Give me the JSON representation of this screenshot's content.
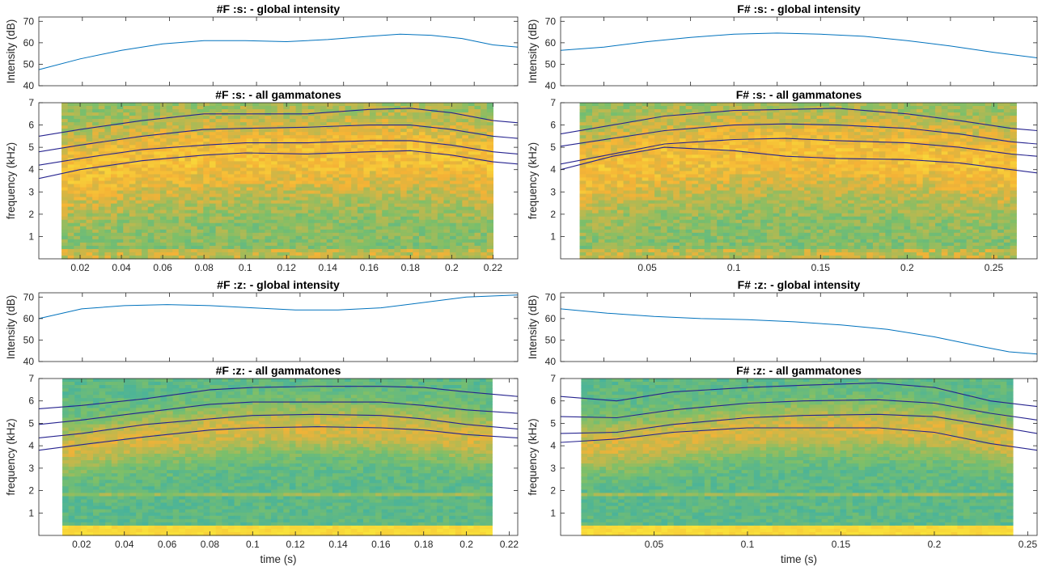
{
  "figure": {
    "background": "#ffffff"
  },
  "colors": {
    "intensity_line": "#0072bd",
    "formant_line": "#26238f",
    "spectro_low": "#1aa8c8",
    "spectro_mid": "#7cbf6a",
    "spectro_high": "#f5b236",
    "spectro_peak": "#f9e33a"
  },
  "chart_data": [
    {
      "id": "F_s_intensity",
      "type": "line",
      "title": "#F :s: - global intensity",
      "xlabel": "",
      "ylabel": "Intensity (dB)",
      "xlim": [
        0,
        0.232
      ],
      "ylim": [
        40,
        72
      ],
      "xticks": [],
      "yticks": [
        40,
        50,
        60,
        70
      ],
      "series": [
        {
          "x": [
            0,
            0.02,
            0.04,
            0.06,
            0.08,
            0.1,
            0.12,
            0.14,
            0.16,
            0.175,
            0.19,
            0.205,
            0.22,
            0.232
          ],
          "y": [
            47.5,
            52.5,
            56.5,
            59.5,
            61,
            61,
            60.5,
            61.5,
            63,
            64,
            63.5,
            62,
            59,
            58
          ]
        }
      ]
    },
    {
      "id": "F_s_gammatones",
      "type": "heatmap",
      "title": "#F :s: - all gammatones",
      "xlabel": "",
      "ylabel": "frequency (kHz)",
      "xlim": [
        0,
        0.232
      ],
      "ylim": [
        0,
        7
      ],
      "data_xrange": [
        0.011,
        0.22
      ],
      "xticks": [
        0.02,
        0.04,
        0.06,
        0.08,
        0.1,
        0.12,
        0.14,
        0.16,
        0.18,
        0.2,
        0.22
      ],
      "xticklabels": [
        "0.02",
        "0.04",
        "0.06",
        "0.08",
        "0.1",
        "0.12",
        "0.14",
        "0.16",
        "0.18",
        "0.2",
        "0.22"
      ],
      "yticks": [
        1,
        2,
        3,
        4,
        5,
        6,
        7
      ],
      "formants": [
        {
          "x": [
            0,
            0.02,
            0.05,
            0.08,
            0.1,
            0.13,
            0.16,
            0.18,
            0.2,
            0.22,
            0.232
          ],
          "y": [
            5.5,
            5.8,
            6.2,
            6.5,
            6.5,
            6.5,
            6.7,
            6.75,
            6.55,
            6.2,
            6.1
          ]
        },
        {
          "x": [
            0,
            0.02,
            0.05,
            0.08,
            0.1,
            0.13,
            0.16,
            0.18,
            0.2,
            0.22,
            0.232
          ],
          "y": [
            4.8,
            5.1,
            5.5,
            5.8,
            5.85,
            5.9,
            6.0,
            6.0,
            5.8,
            5.5,
            5.4
          ]
        },
        {
          "x": [
            0,
            0.02,
            0.05,
            0.08,
            0.1,
            0.13,
            0.16,
            0.18,
            0.2,
            0.22,
            0.232
          ],
          "y": [
            4.2,
            4.5,
            4.9,
            5.1,
            5.2,
            5.2,
            5.3,
            5.3,
            5.1,
            4.8,
            4.7
          ]
        },
        {
          "x": [
            0,
            0.02,
            0.05,
            0.08,
            0.1,
            0.13,
            0.16,
            0.18,
            0.2,
            0.22,
            0.232
          ],
          "y": [
            3.6,
            4.0,
            4.4,
            4.65,
            4.75,
            4.7,
            4.8,
            4.85,
            4.65,
            4.35,
            4.25
          ]
        }
      ]
    },
    {
      "id": "Fsharp_s_intensity",
      "type": "line",
      "title": "F# :s: - global intensity",
      "xlabel": "",
      "ylabel": "Intensity (dB)",
      "xlim": [
        0,
        0.275
      ],
      "ylim": [
        40,
        72
      ],
      "xticks": [],
      "yticks": [
        40,
        50,
        60,
        70
      ],
      "series": [
        {
          "x": [
            0,
            0.025,
            0.05,
            0.075,
            0.1,
            0.125,
            0.15,
            0.175,
            0.2,
            0.225,
            0.25,
            0.275
          ],
          "y": [
            56.5,
            58,
            60.5,
            62.5,
            64,
            64.5,
            64,
            63,
            61,
            58.5,
            55.5,
            53
          ]
        }
      ]
    },
    {
      "id": "Fsharp_s_gammatones",
      "type": "heatmap",
      "title": "F# :s: - all gammatones",
      "xlabel": "",
      "ylabel": "frequency (kHz)",
      "xlim": [
        0,
        0.275
      ],
      "ylim": [
        0,
        7
      ],
      "data_xrange": [
        0.011,
        0.263
      ],
      "xticks": [
        0.05,
        0.1,
        0.15,
        0.2,
        0.25
      ],
      "xticklabels": [
        "0.05",
        "0.1",
        "0.15",
        "0.2",
        "0.25"
      ],
      "yticks": [
        1,
        2,
        3,
        4,
        5,
        6,
        7
      ],
      "formants": [
        {
          "x": [
            0,
            0.03,
            0.06,
            0.1,
            0.13,
            0.16,
            0.2,
            0.23,
            0.26,
            0.275
          ],
          "y": [
            5.6,
            6.0,
            6.4,
            6.65,
            6.7,
            6.75,
            6.5,
            6.2,
            5.85,
            5.75
          ]
        },
        {
          "x": [
            0,
            0.03,
            0.06,
            0.1,
            0.13,
            0.16,
            0.2,
            0.23,
            0.26,
            0.275
          ],
          "y": [
            5.05,
            5.4,
            5.75,
            6.0,
            6.05,
            6.0,
            5.85,
            5.6,
            5.25,
            5.15
          ]
        },
        {
          "x": [
            0,
            0.03,
            0.06,
            0.1,
            0.13,
            0.16,
            0.2,
            0.23,
            0.26,
            0.275
          ],
          "y": [
            4.25,
            4.7,
            5.15,
            5.35,
            5.4,
            5.3,
            5.2,
            5.0,
            4.7,
            4.6
          ]
        },
        {
          "x": [
            0,
            0.03,
            0.06,
            0.1,
            0.13,
            0.16,
            0.2,
            0.23,
            0.26,
            0.275
          ],
          "y": [
            4.0,
            4.6,
            5.0,
            4.85,
            4.6,
            4.5,
            4.45,
            4.3,
            4.0,
            3.85
          ]
        }
      ]
    },
    {
      "id": "F_z_intensity",
      "type": "line",
      "title": "#F :z: - global intensity",
      "xlabel": "",
      "ylabel": "Intensity (dB)",
      "xlim": [
        0,
        0.224
      ],
      "ylim": [
        40,
        72
      ],
      "xticks": [],
      "yticks": [
        40,
        50,
        60,
        70
      ],
      "series": [
        {
          "x": [
            0,
            0.02,
            0.04,
            0.06,
            0.08,
            0.1,
            0.12,
            0.14,
            0.16,
            0.18,
            0.2,
            0.224
          ],
          "y": [
            60,
            64.5,
            66,
            66.5,
            66,
            65,
            64,
            64,
            65,
            67.5,
            70,
            71
          ]
        }
      ]
    },
    {
      "id": "F_z_gammatones",
      "type": "heatmap",
      "title": "#F :z: - all gammatones",
      "xlabel": "time (s)",
      "ylabel": "frequency (kHz)",
      "xlim": [
        0,
        0.224
      ],
      "ylim": [
        0,
        7
      ],
      "data_xrange": [
        0.011,
        0.212
      ],
      "xticks": [
        0.02,
        0.04,
        0.06,
        0.08,
        0.1,
        0.12,
        0.14,
        0.16,
        0.18,
        0.2,
        0.22
      ],
      "xticklabels": [
        "0.02",
        "0.04",
        "0.06",
        "0.08",
        "0.1",
        "0.12",
        "0.14",
        "0.16",
        "0.18",
        "0.2",
        "0.22"
      ],
      "yticks": [
        1,
        2,
        3,
        4,
        5,
        6,
        7
      ],
      "formants": [
        {
          "x": [
            0,
            0.02,
            0.05,
            0.08,
            0.1,
            0.13,
            0.16,
            0.18,
            0.2,
            0.224
          ],
          "y": [
            5.65,
            5.8,
            6.1,
            6.5,
            6.6,
            6.65,
            6.65,
            6.6,
            6.4,
            6.2
          ]
        },
        {
          "x": [
            0,
            0.02,
            0.05,
            0.08,
            0.1,
            0.13,
            0.16,
            0.18,
            0.2,
            0.224
          ],
          "y": [
            4.95,
            5.15,
            5.5,
            5.85,
            5.95,
            5.95,
            5.95,
            5.8,
            5.6,
            5.45
          ]
        },
        {
          "x": [
            0,
            0.02,
            0.05,
            0.08,
            0.1,
            0.13,
            0.16,
            0.18,
            0.2,
            0.224
          ],
          "y": [
            4.35,
            4.55,
            4.95,
            5.2,
            5.35,
            5.4,
            5.35,
            5.2,
            4.95,
            4.75
          ]
        },
        {
          "x": [
            0,
            0.02,
            0.05,
            0.08,
            0.1,
            0.13,
            0.16,
            0.18,
            0.2,
            0.224
          ],
          "y": [
            3.8,
            4.05,
            4.4,
            4.7,
            4.8,
            4.85,
            4.8,
            4.7,
            4.5,
            4.35
          ]
        }
      ]
    },
    {
      "id": "Fsharp_z_intensity",
      "type": "line",
      "title": "F# :z: - global intensity",
      "xlabel": "",
      "ylabel": "Intensity (dB)",
      "xlim": [
        0,
        0.255
      ],
      "ylim": [
        40,
        72
      ],
      "xticks": [],
      "yticks": [
        40,
        50,
        60,
        70
      ],
      "series": [
        {
          "x": [
            0,
            0.025,
            0.05,
            0.075,
            0.1,
            0.125,
            0.15,
            0.175,
            0.2,
            0.225,
            0.24,
            0.255
          ],
          "y": [
            64.5,
            62.5,
            61,
            60,
            59.5,
            58.5,
            57,
            55,
            51.5,
            47,
            44.5,
            43.5
          ]
        }
      ]
    },
    {
      "id": "Fsharp_z_gammatones",
      "type": "heatmap",
      "title": "F# :z: - all gammatones",
      "xlabel": "time (s)",
      "ylabel": "frequency (kHz)",
      "xlim": [
        0,
        0.255
      ],
      "ylim": [
        0,
        7
      ],
      "data_xrange": [
        0.011,
        0.242
      ],
      "xticks": [
        0.05,
        0.1,
        0.15,
        0.2,
        0.25
      ],
      "xticklabels": [
        "0.05",
        "0.1",
        "0.15",
        "0.2",
        "0.25"
      ],
      "yticks": [
        1,
        2,
        3,
        4,
        5,
        6,
        7
      ],
      "formants": [
        {
          "x": [
            0,
            0.03,
            0.06,
            0.1,
            0.13,
            0.17,
            0.2,
            0.23,
            0.255
          ],
          "y": [
            6.2,
            6.0,
            6.4,
            6.6,
            6.7,
            6.8,
            6.6,
            6.0,
            5.75
          ]
        },
        {
          "x": [
            0,
            0.03,
            0.06,
            0.1,
            0.13,
            0.17,
            0.2,
            0.23,
            0.255
          ],
          "y": [
            5.3,
            5.25,
            5.6,
            5.9,
            6.0,
            6.05,
            5.9,
            5.45,
            5.15
          ]
        },
        {
          "x": [
            0,
            0.03,
            0.06,
            0.1,
            0.13,
            0.17,
            0.2,
            0.23,
            0.255
          ],
          "y": [
            4.55,
            4.6,
            4.95,
            5.25,
            5.35,
            5.4,
            5.3,
            4.9,
            4.55
          ]
        },
        {
          "x": [
            0,
            0.03,
            0.06,
            0.1,
            0.13,
            0.17,
            0.2,
            0.23,
            0.255
          ],
          "y": [
            4.15,
            4.3,
            4.6,
            4.8,
            4.8,
            4.8,
            4.6,
            4.1,
            3.8
          ]
        }
      ]
    }
  ]
}
